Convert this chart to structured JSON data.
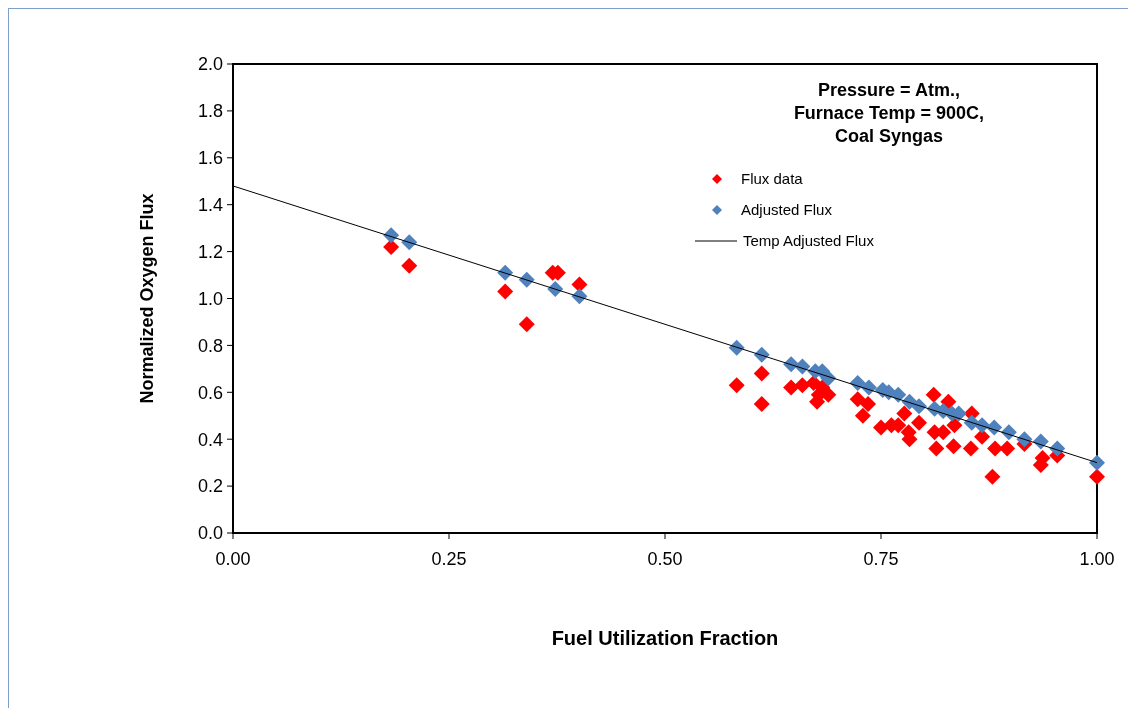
{
  "chart_data": {
    "type": "scatter",
    "title": "Pressure = Atm.,\nFurnace Temp = 900C,\nCoal Syngas",
    "xlabel": "Fuel Utilization Fraction",
    "ylabel": "Normalized Oxygen Flux",
    "xlim": [
      0,
      1
    ],
    "xticks": [
      {
        "value": 0,
        "label": "0.00"
      },
      {
        "value": 0.25,
        "label": "0.25"
      },
      {
        "value": 0.5,
        "label": "0.50"
      },
      {
        "value": 0.75,
        "label": "0.75"
      },
      {
        "value": 1,
        "label": "1.00"
      }
    ],
    "ylim": [
      0,
      2
    ],
    "yticks": [
      {
        "value": 0,
        "label": "0.0"
      },
      {
        "value": 0.2,
        "label": "0.2"
      },
      {
        "value": 0.4,
        "label": "0.4"
      },
      {
        "value": 0.6,
        "label": "0.6"
      },
      {
        "value": 0.8,
        "label": "0.8"
      },
      {
        "value": 1,
        "label": "1.0"
      },
      {
        "value": 1.2,
        "label": "1.2"
      },
      {
        "value": 1.4,
        "label": "1.4"
      },
      {
        "value": 1.6,
        "label": "1.6"
      },
      {
        "value": 1.8,
        "label": "1.8"
      },
      {
        "value": 2,
        "label": "2.0"
      }
    ],
    "grid": false,
    "legend": "top right",
    "marker": "diamond",
    "series": [
      {
        "name": "Flux data",
        "color": "#ff0000",
        "x": [
          0.183,
          0.204,
          0.315,
          0.34,
          0.37,
          0.376,
          0.401,
          0.583,
          0.612,
          0.612,
          0.646,
          0.659,
          0.672,
          0.682,
          0.678,
          0.676,
          0.689,
          0.723,
          0.735,
          0.729,
          0.75,
          0.762,
          0.77,
          0.777,
          0.794,
          0.782,
          0.783,
          0.811,
          0.828,
          0.855,
          0.812,
          0.822,
          0.835,
          0.814,
          0.834,
          0.854,
          0.867,
          0.882,
          0.896,
          0.879,
          0.916,
          0.937,
          0.935,
          0.954,
          1.0
        ],
        "values": [
          1.22,
          1.14,
          1.03,
          0.89,
          1.11,
          1.11,
          1.06,
          0.63,
          0.68,
          0.55,
          0.62,
          0.63,
          0.64,
          0.62,
          0.59,
          0.56,
          0.59,
          0.57,
          0.55,
          0.5,
          0.45,
          0.46,
          0.46,
          0.51,
          0.47,
          0.43,
          0.4,
          0.59,
          0.56,
          0.51,
          0.43,
          0.43,
          0.46,
          0.36,
          0.37,
          0.36,
          0.41,
          0.36,
          0.36,
          0.24,
          0.38,
          0.32,
          0.29,
          0.33,
          0.24
        ]
      },
      {
        "name": "Adjusted Flux",
        "color": "#4f81bd",
        "x": [
          0.183,
          0.204,
          0.315,
          0.34,
          0.373,
          0.401,
          0.583,
          0.612,
          0.646,
          0.659,
          0.674,
          0.682,
          0.689,
          0.723,
          0.736,
          0.752,
          0.759,
          0.77,
          0.783,
          0.794,
          0.812,
          0.822,
          0.832,
          0.84,
          0.855,
          0.867,
          0.881,
          0.898,
          0.916,
          0.935,
          0.954,
          1.0
        ],
        "values": [
          1.27,
          1.24,
          1.11,
          1.08,
          1.04,
          1.01,
          0.79,
          0.76,
          0.72,
          0.71,
          0.69,
          0.69,
          0.66,
          0.64,
          0.62,
          0.61,
          0.6,
          0.59,
          0.56,
          0.54,
          0.53,
          0.52,
          0.51,
          0.51,
          0.47,
          0.46,
          0.45,
          0.43,
          0.4,
          0.39,
          0.36,
          0.3
        ]
      },
      {
        "name": "Temp Adjusted Flux",
        "type": "line",
        "color": "#000000",
        "line_style": "solid",
        "marker": "none",
        "x": [
          0,
          1
        ],
        "values": [
          1.48,
          0.3
        ]
      }
    ]
  }
}
